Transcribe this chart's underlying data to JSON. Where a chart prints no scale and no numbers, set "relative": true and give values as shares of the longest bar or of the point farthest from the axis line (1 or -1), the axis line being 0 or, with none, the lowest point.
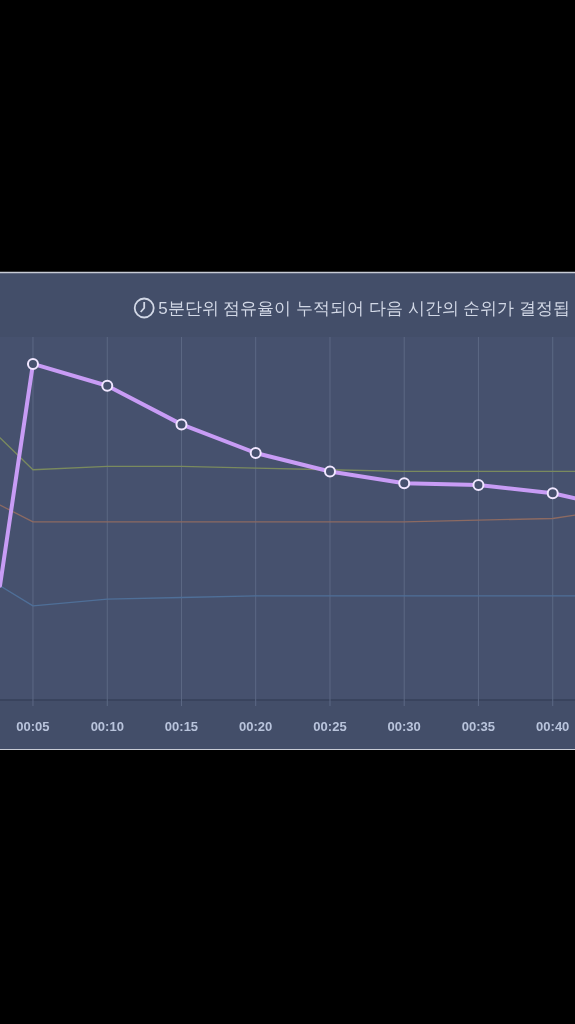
{
  "chart_data": {
    "type": "line",
    "title": "5분단위 점유율이 누적되어 다음 시간의 순위가 결정됩",
    "relative": true,
    "grid": "x",
    "x": [
      0.0463,
      0.0833,
      0.1667,
      0.25,
      0.3333,
      0.4167,
      0.5,
      0.5833,
      0.6667,
      0.6917
    ],
    "xlim": [
      0.0463,
      0.6917
    ],
    "xticks": [
      {
        "value": 0.0833,
        "label": "00:05"
      },
      {
        "value": 0.1667,
        "label": "00:10"
      },
      {
        "value": 0.25,
        "label": "00:15"
      },
      {
        "value": 0.3333,
        "label": "00:20"
      },
      {
        "value": 0.4167,
        "label": "00:25"
      },
      {
        "value": 0.5,
        "label": "00:30"
      },
      {
        "value": 0.5833,
        "label": "00:35"
      },
      {
        "value": 0.6667,
        "label": "00:40"
      }
    ],
    "series": [
      {
        "color": "#7a8a5e",
        "marker": "none",
        "values": [
          0.78,
          0.685,
          0.695,
          0.695,
          0.69,
          0.685,
          0.68,
          0.68,
          0.68,
          0.68
        ]
      },
      {
        "color": "#8c6a62",
        "marker": "none",
        "values": [
          0.58,
          0.53,
          0.53,
          0.53,
          0.53,
          0.53,
          0.53,
          0.535,
          0.54,
          0.55
        ]
      },
      {
        "color": "#4f6f98",
        "marker": "none",
        "values": [
          0.34,
          0.28,
          0.3,
          0.305,
          0.31,
          0.31,
          0.31,
          0.31,
          0.31,
          0.31
        ]
      },
      {
        "color": "#c89cf5",
        "marker": "circle",
        "values": [
          0.34,
          1,
          0.935,
          0.82,
          0.735,
          0.68,
          0.645,
          0.64,
          0.615,
          0.6
        ]
      }
    ]
  }
}
